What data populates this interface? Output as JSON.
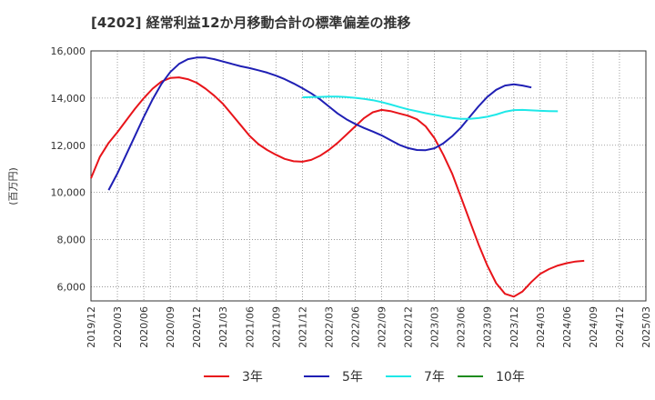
{
  "chart_data": {
    "type": "line",
    "title": "[4202]  経常利益12か月移動合計の標準偏差の推移",
    "ylabel": "(百万円)",
    "xlabel": "",
    "ylim": [
      5400,
      16000
    ],
    "yticks": [
      6000,
      8000,
      10000,
      12000,
      14000,
      16000
    ],
    "ytick_labels": [
      "6,000",
      "8,000",
      "10,000",
      "12,000",
      "14,000",
      "16,000"
    ],
    "xlim": [
      "2019-12",
      "2025-03"
    ],
    "xticks": [
      "2019/12",
      "2020/03",
      "2020/06",
      "2020/09",
      "2020/12",
      "2021/03",
      "2021/06",
      "2021/09",
      "2021/12",
      "2022/03",
      "2022/06",
      "2022/09",
      "2022/12",
      "2023/03",
      "2023/06",
      "2023/09",
      "2023/12",
      "2024/03",
      "2024/06",
      "2024/09",
      "2024/12",
      "2025/03"
    ],
    "grid": true,
    "legend_position": "bottom",
    "series": [
      {
        "name": "3年",
        "color": "#e8141a",
        "points": [
          [
            "2019-12",
            10600
          ],
          [
            "2020-01",
            11500
          ],
          [
            "2020-02",
            12100
          ],
          [
            "2020-03",
            12550
          ],
          [
            "2020-04",
            13050
          ],
          [
            "2020-05",
            13550
          ],
          [
            "2020-06",
            14000
          ],
          [
            "2020-07",
            14400
          ],
          [
            "2020-08",
            14700
          ],
          [
            "2020-09",
            14850
          ],
          [
            "2020-10",
            14880
          ],
          [
            "2020-11",
            14800
          ],
          [
            "2020-12",
            14650
          ],
          [
            "2021-01",
            14400
          ],
          [
            "2021-02",
            14100
          ],
          [
            "2021-03",
            13750
          ],
          [
            "2021-04",
            13300
          ],
          [
            "2021-05",
            12850
          ],
          [
            "2021-06",
            12400
          ],
          [
            "2021-07",
            12050
          ],
          [
            "2021-08",
            11800
          ],
          [
            "2021-09",
            11600
          ],
          [
            "2021-10",
            11420
          ],
          [
            "2021-11",
            11320
          ],
          [
            "2021-12",
            11300
          ],
          [
            "2022-01",
            11380
          ],
          [
            "2022-02",
            11550
          ],
          [
            "2022-03",
            11800
          ],
          [
            "2022-04",
            12100
          ],
          [
            "2022-05",
            12450
          ],
          [
            "2022-06",
            12800
          ],
          [
            "2022-07",
            13150
          ],
          [
            "2022-08",
            13400
          ],
          [
            "2022-09",
            13500
          ],
          [
            "2022-10",
            13450
          ],
          [
            "2022-11",
            13350
          ],
          [
            "2022-12",
            13250
          ],
          [
            "2023-01",
            13100
          ],
          [
            "2023-02",
            12800
          ],
          [
            "2023-03",
            12300
          ],
          [
            "2023-04",
            11600
          ],
          [
            "2023-05",
            10800
          ],
          [
            "2023-06",
            9800
          ],
          [
            "2023-07",
            8800
          ],
          [
            "2023-08",
            7800
          ],
          [
            "2023-09",
            6900
          ],
          [
            "2023-10",
            6150
          ],
          [
            "2023-11",
            5700
          ],
          [
            "2023-12",
            5580
          ],
          [
            "2024-01",
            5800
          ],
          [
            "2024-02",
            6200
          ],
          [
            "2024-03",
            6550
          ],
          [
            "2024-04",
            6750
          ],
          [
            "2024-05",
            6900
          ],
          [
            "2024-06",
            7000
          ],
          [
            "2024-07",
            7070
          ],
          [
            "2024-08",
            7100
          ]
        ]
      },
      {
        "name": "5年",
        "color": "#1f1fb4",
        "points": [
          [
            "2020-02",
            10100
          ],
          [
            "2020-03",
            10800
          ],
          [
            "2020-04",
            11600
          ],
          [
            "2020-05",
            12400
          ],
          [
            "2020-06",
            13200
          ],
          [
            "2020-07",
            13950
          ],
          [
            "2020-08",
            14600
          ],
          [
            "2020-09",
            15100
          ],
          [
            "2020-10",
            15450
          ],
          [
            "2020-11",
            15650
          ],
          [
            "2020-12",
            15720
          ],
          [
            "2021-01",
            15720
          ],
          [
            "2021-02",
            15650
          ],
          [
            "2021-03",
            15550
          ],
          [
            "2021-04",
            15450
          ],
          [
            "2021-05",
            15350
          ],
          [
            "2021-06",
            15270
          ],
          [
            "2021-07",
            15180
          ],
          [
            "2021-08",
            15080
          ],
          [
            "2021-09",
            14950
          ],
          [
            "2021-10",
            14800
          ],
          [
            "2021-11",
            14620
          ],
          [
            "2021-12",
            14420
          ],
          [
            "2022-01",
            14200
          ],
          [
            "2022-02",
            13950
          ],
          [
            "2022-03",
            13650
          ],
          [
            "2022-04",
            13350
          ],
          [
            "2022-05",
            13100
          ],
          [
            "2022-06",
            12900
          ],
          [
            "2022-07",
            12730
          ],
          [
            "2022-08",
            12580
          ],
          [
            "2022-09",
            12420
          ],
          [
            "2022-10",
            12220
          ],
          [
            "2022-11",
            12020
          ],
          [
            "2022-12",
            11880
          ],
          [
            "2023-01",
            11800
          ],
          [
            "2023-02",
            11790
          ],
          [
            "2023-03",
            11870
          ],
          [
            "2023-04",
            12080
          ],
          [
            "2023-05",
            12380
          ],
          [
            "2023-06",
            12750
          ],
          [
            "2023-07",
            13200
          ],
          [
            "2023-08",
            13650
          ],
          [
            "2023-09",
            14050
          ],
          [
            "2023-10",
            14350
          ],
          [
            "2023-11",
            14530
          ],
          [
            "2023-12",
            14580
          ],
          [
            "2024-01",
            14530
          ],
          [
            "2024-02",
            14450
          ]
        ]
      },
      {
        "name": "7年",
        "color": "#1ee8e8",
        "points": [
          [
            "2021-12",
            14030
          ],
          [
            "2022-01",
            14040
          ],
          [
            "2022-02",
            14050
          ],
          [
            "2022-03",
            14060
          ],
          [
            "2022-04",
            14060
          ],
          [
            "2022-05",
            14040
          ],
          [
            "2022-06",
            14010
          ],
          [
            "2022-07",
            13970
          ],
          [
            "2022-08",
            13910
          ],
          [
            "2022-09",
            13830
          ],
          [
            "2022-10",
            13730
          ],
          [
            "2022-11",
            13620
          ],
          [
            "2022-12",
            13520
          ],
          [
            "2023-01",
            13440
          ],
          [
            "2023-02",
            13360
          ],
          [
            "2023-03",
            13290
          ],
          [
            "2023-04",
            13220
          ],
          [
            "2023-05",
            13160
          ],
          [
            "2023-06",
            13120
          ],
          [
            "2023-07",
            13120
          ],
          [
            "2023-08",
            13150
          ],
          [
            "2023-09",
            13210
          ],
          [
            "2023-10",
            13300
          ],
          [
            "2023-11",
            13420
          ],
          [
            "2023-12",
            13490
          ],
          [
            "2024-01",
            13500
          ],
          [
            "2024-02",
            13480
          ],
          [
            "2024-03",
            13460
          ],
          [
            "2024-04",
            13450
          ],
          [
            "2024-05",
            13440
          ]
        ]
      },
      {
        "name": "10年",
        "color": "#1e8c1e",
        "points": []
      }
    ]
  }
}
